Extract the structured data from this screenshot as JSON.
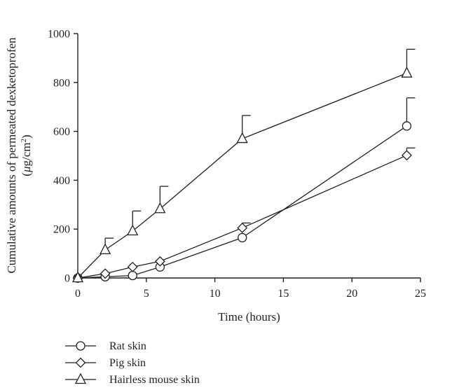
{
  "chart_data": {
    "type": "line",
    "title": "",
    "xlabel": "Time (hours)",
    "ylabel_line1": "Cumulative amounts of permeated dexketoprofen",
    "ylabel_line2_prefix": "(",
    "ylabel_mu": "μ",
    "ylabel_unit": "g/cm",
    "ylabel_sup": "2",
    "ylabel_suffix": ")",
    "xlim": [
      0,
      25
    ],
    "ylim": [
      0,
      1000
    ],
    "x_ticks": [
      0,
      5,
      10,
      15,
      20,
      25
    ],
    "y_ticks": [
      0,
      200,
      400,
      600,
      800,
      1000
    ],
    "grid": false,
    "legend_position": "bottom-left, below plot",
    "x": [
      0,
      2,
      4,
      6,
      12,
      24
    ],
    "series": [
      {
        "name": "Rat skin",
        "marker": "circle",
        "values": [
          0,
          5,
          10,
          45,
          165,
          622
        ],
        "error": [
          0,
          0,
          0,
          0,
          0,
          115
        ]
      },
      {
        "name": "Pig skin",
        "marker": "diamond",
        "values": [
          0,
          18,
          45,
          68,
          205,
          502
        ],
        "error": [
          0,
          0,
          0,
          0,
          20,
          30
        ]
      },
      {
        "name": "Hairless mouse skin",
        "marker": "triangle",
        "values": [
          0,
          115,
          192,
          283,
          570,
          838
        ],
        "error": [
          0,
          48,
          82,
          92,
          95,
          98
        ]
      }
    ]
  }
}
